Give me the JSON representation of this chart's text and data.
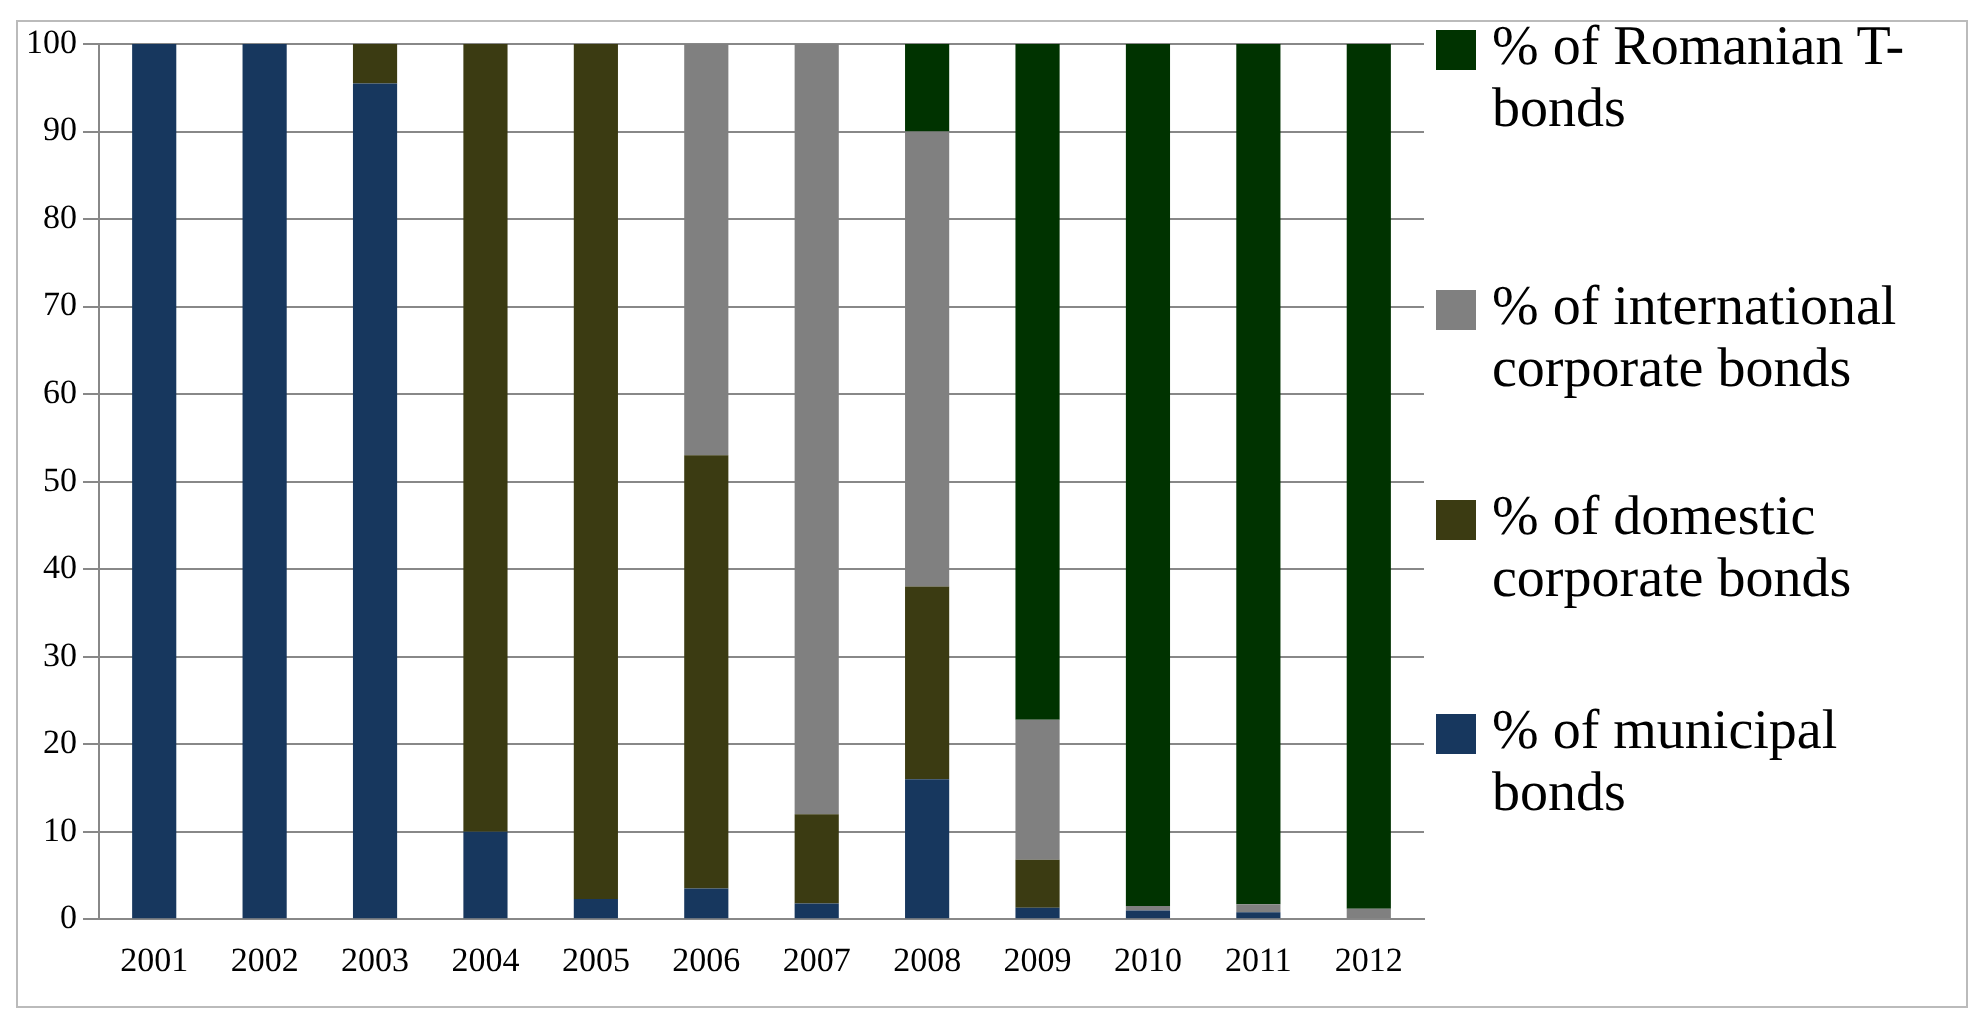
{
  "chart_data": {
    "type": "bar",
    "stacked": true,
    "categories": [
      "2001",
      "2002",
      "2003",
      "2004",
      "2005",
      "2006",
      "2007",
      "2008",
      "2009",
      "2010",
      "2011",
      "2012"
    ],
    "series": [
      {
        "name": "% of municipal bonds",
        "color": "#17375e",
        "values": [
          100,
          100,
          95.5,
          10,
          2.3,
          3.5,
          1.8,
          16,
          1.3,
          1,
          0.8,
          null
        ]
      },
      {
        "name": "% of domestic corporate bonds",
        "color": "#3b3b12",
        "values": [
          null,
          null,
          4.5,
          90,
          97.7,
          49.5,
          10.2,
          22,
          5.5,
          null,
          null,
          null
        ]
      },
      {
        "name": "% of international corporate bonds",
        "color": "#808080",
        "values": [
          null,
          null,
          null,
          null,
          null,
          47,
          88,
          52,
          16,
          0.5,
          0.9,
          1.2
        ]
      },
      {
        "name": "% of Romanian T-bonds",
        "color": "#003300",
        "values": [
          null,
          null,
          null,
          null,
          null,
          null,
          null,
          10,
          77.2,
          98.5,
          98.3,
          98.8
        ]
      }
    ],
    "ylim": [
      0,
      100
    ],
    "yticks": [
      0,
      10,
      20,
      30,
      40,
      50,
      60,
      70,
      80,
      90,
      100
    ],
    "grid": "y",
    "legend": "right"
  }
}
